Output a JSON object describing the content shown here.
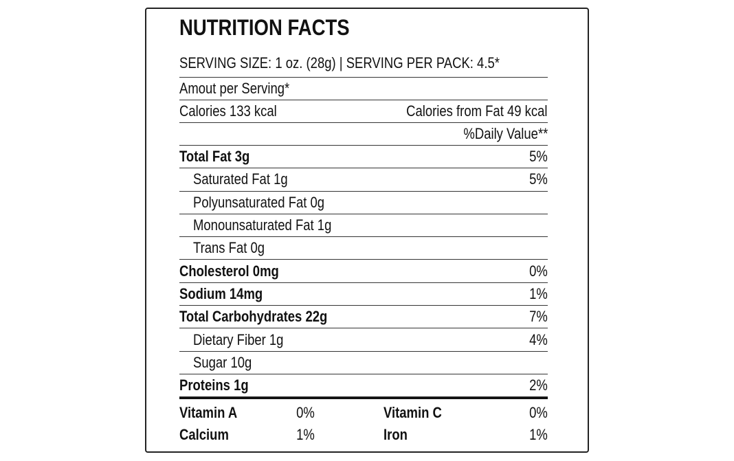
{
  "header": {
    "title": "NUTRITION FACTS",
    "serving": "SERVING SIZE: 1 oz. (28g) | SERVING PER PACK: 4.5*"
  },
  "amount_per_serving": "Amout per Serving*",
  "calories": {
    "left": "Calories 133 kcal",
    "right": "Calories from Fat 49 kcal"
  },
  "daily_value_header": "%Daily Value**",
  "nutrients": [
    {
      "label": "Total Fat 3g",
      "percent": "5%",
      "bold": true
    },
    {
      "label": "Saturated Fat 1g",
      "percent": "5%",
      "indent": true
    },
    {
      "label": "Polyunsaturated Fat 0g",
      "indent": true
    },
    {
      "label": "Monounsaturated Fat 1g",
      "indent": true
    },
    {
      "label": "Trans Fat 0g",
      "indent": true
    },
    {
      "label": "Cholesterol 0mg",
      "percent": "0%",
      "bold": true
    },
    {
      "label": "Sodium 14mg",
      "percent": "1%",
      "bold": true
    },
    {
      "label": "Total Carbohydrates 22g",
      "percent": "7%",
      "bold": true
    },
    {
      "label": "Dietary Fiber 1g",
      "percent": "4%",
      "indent": true
    },
    {
      "label": "Sugar 10g",
      "indent": true
    },
    {
      "label": "Proteins 1g",
      "percent": "2%",
      "bold": true
    }
  ],
  "vitamins": [
    [
      "Vitamin A",
      "0%",
      "Vitamin C",
      "0%"
    ],
    [
      "Calcium",
      "1%",
      "Iron",
      "1%"
    ]
  ]
}
